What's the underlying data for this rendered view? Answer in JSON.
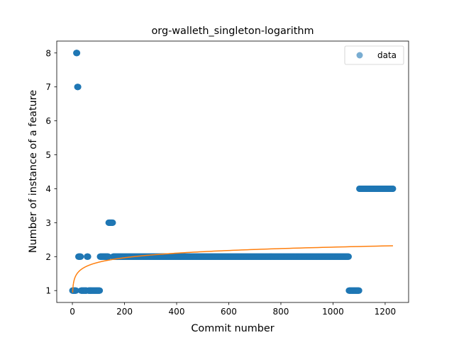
{
  "chart_data": {
    "type": "scatter",
    "title": "org-walleth_singleton-logarithm",
    "xlabel": "Commit number",
    "ylabel": "Number of instance of a feature",
    "xlim": [
      -60,
      1290
    ],
    "ylim": [
      0.65,
      8.35
    ],
    "xticks": [
      0,
      200,
      400,
      600,
      800,
      1000,
      1200
    ],
    "yticks": [
      1,
      2,
      3,
      4,
      5,
      6,
      7,
      8
    ],
    "grid": false,
    "legend": {
      "position": "top-right",
      "entries": [
        "data"
      ]
    },
    "colors": {
      "data": "#1f77b4",
      "fit": "#ff7f0e"
    },
    "series": [
      {
        "name": "data",
        "kind": "scatter",
        "segments": [
          {
            "x_start": 0,
            "x_end": 14,
            "y": 1
          },
          {
            "x_start": 15,
            "x_end": 18,
            "y": 8
          },
          {
            "x_start": 19,
            "x_end": 22,
            "y": 7
          },
          {
            "x_start": 23,
            "x_end": 32,
            "y": 2
          },
          {
            "x_start": 33,
            "x_end": 55,
            "y": 1
          },
          {
            "x_start": 56,
            "x_end": 60,
            "y": 2
          },
          {
            "x_start": 61,
            "x_end": 105,
            "y": 1
          },
          {
            "x_start": 106,
            "x_end": 138,
            "y": 2
          },
          {
            "x_start": 139,
            "x_end": 155,
            "y": 3
          },
          {
            "x_start": 156,
            "x_end": 1060,
            "y": 2
          },
          {
            "x_start": 1061,
            "x_end": 1100,
            "y": 1
          },
          {
            "x_start": 1101,
            "x_end": 1230,
            "y": 4
          }
        ]
      },
      {
        "kind": "line",
        "fit": {
          "form": "a + b*ln(x)",
          "a": 0.94,
          "b": 0.194,
          "x_start": 1,
          "x_end": 1230
        }
      }
    ]
  }
}
